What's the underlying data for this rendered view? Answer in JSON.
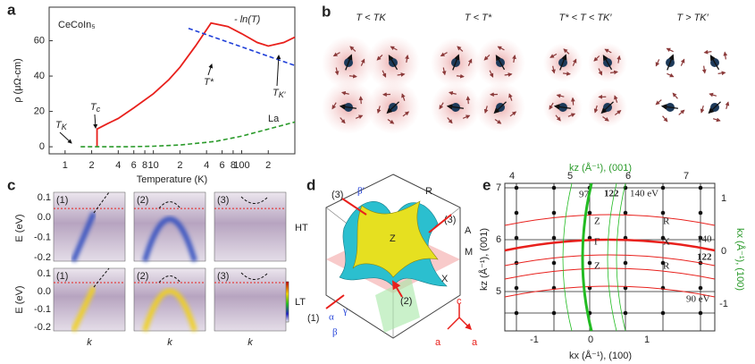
{
  "chart_data": [
    {
      "type": "line",
      "label": "a",
      "xlabel": "Temperature (K)",
      "ylabel": "ρ (μΩ-cm)",
      "xscale": "log",
      "xlim": [
        0.66,
        400
      ],
      "ylim": [
        -4,
        79
      ],
      "xticks": [
        1,
        2,
        4,
        6,
        8,
        10,
        {
          "value": 20,
          "label": "2"
        },
        {
          "value": 40,
          "label": "4"
        },
        {
          "value": 60,
          "label": "6"
        },
        {
          "value": 80,
          "label": "8"
        },
        100,
        {
          "value": 200,
          "label": "2"
        }
      ],
      "yticks": [
        0,
        20,
        40,
        60
      ],
      "series": [
        {
          "name": "CeCoIn₅",
          "color": "#e8201c",
          "dashed": false,
          "x": [
            2.3,
            2.3,
            3,
            4,
            6,
            10,
            15,
            20,
            30,
            45,
            70,
            100,
            150,
            200,
            300,
            400
          ],
          "values": [
            0,
            10,
            13,
            16,
            22,
            30,
            38,
            45,
            57,
            70,
            68,
            64,
            59,
            57,
            59,
            62
          ]
        },
        {
          "name": "La",
          "color": "#2a9a2a",
          "dashed": true,
          "x": [
            1.5,
            5,
            10,
            20,
            50,
            100,
            200,
            400
          ],
          "values": [
            0,
            0,
            0.3,
            1,
            3,
            6,
            10,
            14
          ]
        },
        {
          "name": "- ln(T)",
          "color": "#1f3fd8",
          "dashed": true,
          "x": [
            25,
            400
          ],
          "values": [
            67,
            46
          ]
        }
      ],
      "annotations": [
        {
          "text": "T",
          "sub": "K"
        },
        {
          "text": "T",
          "sub": "c"
        },
        {
          "text": "T*",
          "sub": ""
        },
        {
          "text": "T",
          "sub": "K′"
        }
      ]
    }
  ],
  "panel_b": {
    "label": "b",
    "titles": [
      "T < TK",
      "T < T*",
      "T* < T < TK′",
      "T > TK′"
    ]
  },
  "panel_c": {
    "label": "c",
    "cuts": [
      "(1)",
      "(2)",
      "(3)"
    ],
    "rows": [
      "HT",
      "LT"
    ],
    "ylabel": "E (eV)",
    "yticks": [
      "0.1",
      "0.0",
      "-0.1",
      "-0.2"
    ],
    "xlabel": "k"
  },
  "panel_d": {
    "label": "d",
    "labels": [
      "(3)",
      "β′",
      "R",
      "(3)",
      "Z",
      "A",
      "M",
      "X",
      "(1)",
      "α",
      "γ",
      "β",
      "(2)",
      "c",
      "a",
      "a"
    ]
  },
  "panel_e": {
    "label": "e",
    "top_label": "kz (Å⁻¹), (001)",
    "top_ticks": [
      "4",
      "5",
      "6",
      "7"
    ],
    "left_label": "kz (Å⁻¹), (001)",
    "left_ticks": [
      "7",
      "6",
      "5"
    ],
    "bottom_label": "kx (Å⁻¹), (100)",
    "bottom_ticks": [
      "-1",
      "0",
      "1"
    ],
    "right_label": "kx (Å⁻¹), (100)",
    "right_ticks": [
      "1",
      "0",
      "-1"
    ],
    "labels": [
      "97",
      "122",
      "140 eV",
      "Z",
      "R",
      "Γ",
      "X",
      "Z",
      "R",
      "140",
      "122",
      "90 eV"
    ]
  }
}
